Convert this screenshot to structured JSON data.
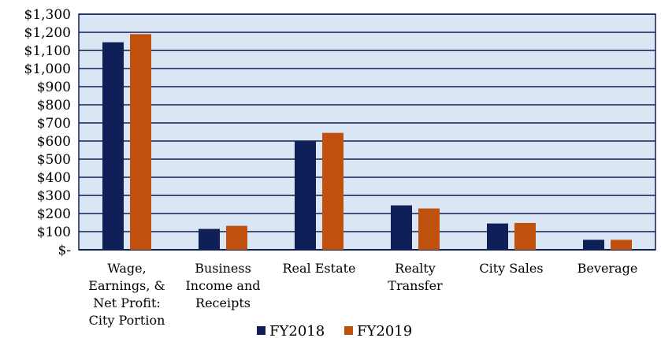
{
  "chart_data": {
    "type": "bar",
    "title": "",
    "xlabel": "",
    "ylabel": "",
    "categories": [
      [
        "Wage,",
        "Earnings, &",
        "Net Profit:",
        "City Portion"
      ],
      [
        "Business",
        "Income and",
        "Receipts"
      ],
      [
        "Real Estate"
      ],
      [
        "Realty",
        "Transfer"
      ],
      [
        "City Sales"
      ],
      [
        "Beverage"
      ]
    ],
    "series": [
      {
        "name": "FY2018",
        "color": "#0f1f57",
        "values": [
          1145,
          115,
          598,
          245,
          145,
          55
        ]
      },
      {
        "name": "FY2019",
        "color": "#c0500e",
        "values": [
          1190,
          132,
          645,
          228,
          148,
          55
        ]
      }
    ],
    "ylim": [
      0,
      1300
    ],
    "ytick_values": [
      0,
      100,
      200,
      300,
      400,
      500,
      600,
      700,
      800,
      900,
      1000,
      1100,
      1200,
      1300
    ],
    "ytick_labels": [
      "$-",
      "$100",
      "$200",
      "$300",
      "$400",
      "$500",
      "$600",
      "$700",
      "$800",
      "$900",
      "$1,000",
      "$1,100",
      "$1,200",
      "$1,300"
    ],
    "grid": true,
    "plot_background": "#dbe6f4",
    "gridline_color": "#0f1f57",
    "legend": "bottom"
  }
}
